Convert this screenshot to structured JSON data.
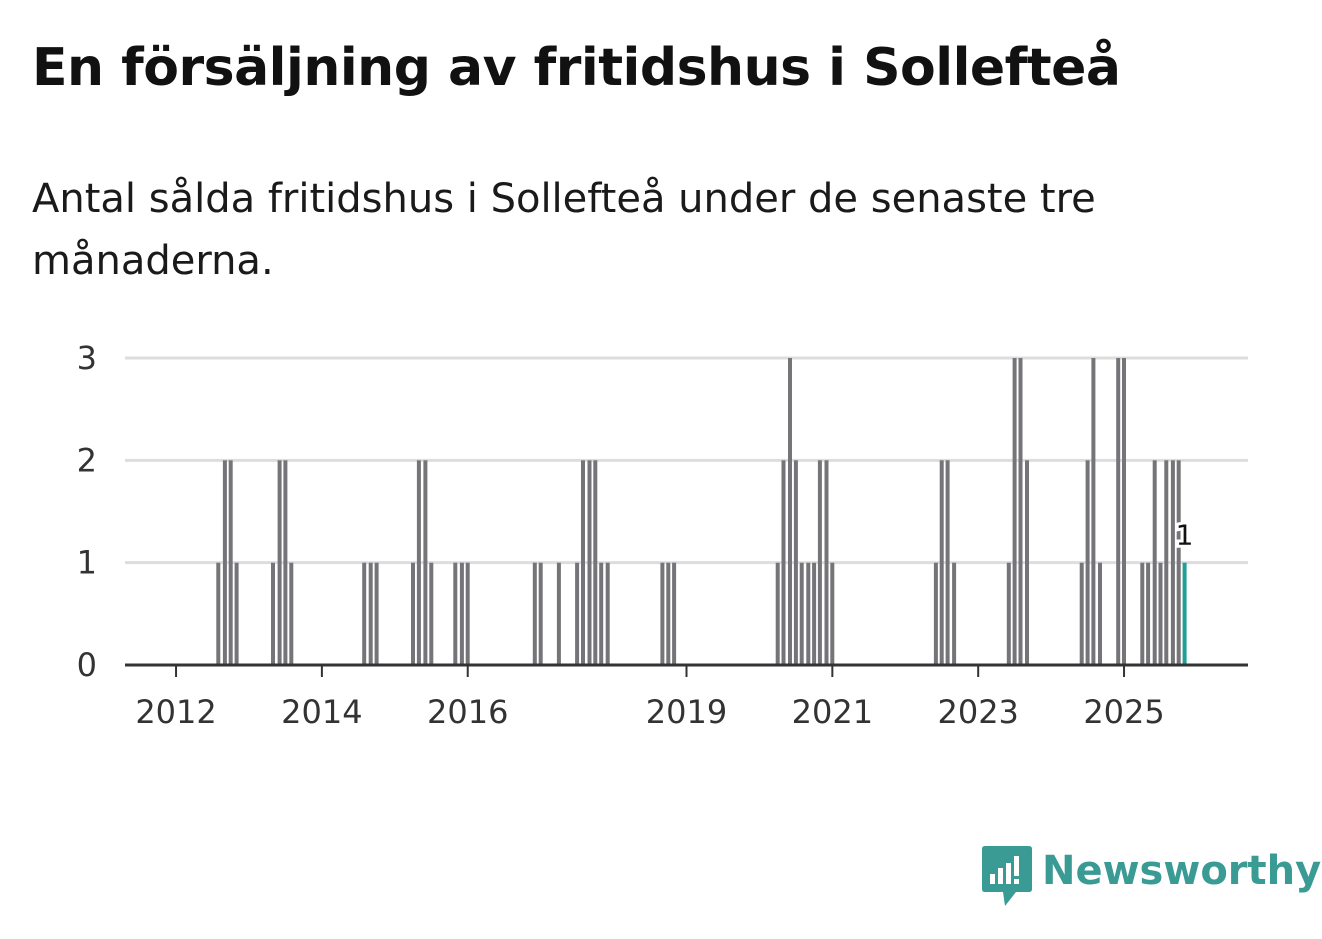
{
  "header": {
    "title": "En försäljning av fritidshus i Sollefteå",
    "subtitle": "Antal sålda fritidshus i Sollefteå under de senaste tre månaderna."
  },
  "brand": {
    "name": "Newsworthy",
    "logo_icon": "chart-bubble-icon"
  },
  "colors": {
    "bar": "#757579",
    "highlight": "#1f9f95",
    "grid": "#dddddd",
    "axis": "#333333",
    "brand": "#3a9b94"
  },
  "chart_data": {
    "type": "bar",
    "title": "En försäljning av fritidshus i Sollefteå",
    "subtitle": "Antal sålda fritidshus i Sollefteå under de senaste tre månaderna.",
    "xlabel": "",
    "ylabel": "",
    "ylim": [
      0,
      3
    ],
    "yticks": [
      0,
      1,
      2,
      3
    ],
    "xlim": [
      2011.3,
      2026.7
    ],
    "xticks": [
      "2012",
      "2014",
      "2016",
      "2019",
      "2021",
      "2023",
      "2025"
    ],
    "grid": true,
    "highlight_label": "1",
    "series": [
      {
        "name": "Antal sålda fritidshus",
        "points": [
          {
            "x": 2012.58,
            "y": 1
          },
          {
            "x": 2012.67,
            "y": 2
          },
          {
            "x": 2012.75,
            "y": 2
          },
          {
            "x": 2012.83,
            "y": 1
          },
          {
            "x": 2013.33,
            "y": 1
          },
          {
            "x": 2013.42,
            "y": 2
          },
          {
            "x": 2013.5,
            "y": 2
          },
          {
            "x": 2013.58,
            "y": 1
          },
          {
            "x": 2014.58,
            "y": 1
          },
          {
            "x": 2014.67,
            "y": 1
          },
          {
            "x": 2014.75,
            "y": 1
          },
          {
            "x": 2015.25,
            "y": 1
          },
          {
            "x": 2015.33,
            "y": 2
          },
          {
            "x": 2015.42,
            "y": 2
          },
          {
            "x": 2015.5,
            "y": 1
          },
          {
            "x": 2015.83,
            "y": 1
          },
          {
            "x": 2015.92,
            "y": 1
          },
          {
            "x": 2016.0,
            "y": 1
          },
          {
            "x": 2016.92,
            "y": 1
          },
          {
            "x": 2017.0,
            "y": 1
          },
          {
            "x": 2017.25,
            "y": 1
          },
          {
            "x": 2017.5,
            "y": 1
          },
          {
            "x": 2017.58,
            "y": 2
          },
          {
            "x": 2017.67,
            "y": 2
          },
          {
            "x": 2017.75,
            "y": 2
          },
          {
            "x": 2017.83,
            "y": 1
          },
          {
            "x": 2017.92,
            "y": 1
          },
          {
            "x": 2018.67,
            "y": 1
          },
          {
            "x": 2018.75,
            "y": 1
          },
          {
            "x": 2018.83,
            "y": 1
          },
          {
            "x": 2020.25,
            "y": 1
          },
          {
            "x": 2020.33,
            "y": 2
          },
          {
            "x": 2020.42,
            "y": 3
          },
          {
            "x": 2020.5,
            "y": 2
          },
          {
            "x": 2020.58,
            "y": 1
          },
          {
            "x": 2020.67,
            "y": 1
          },
          {
            "x": 2020.75,
            "y": 1
          },
          {
            "x": 2020.83,
            "y": 2
          },
          {
            "x": 2020.92,
            "y": 2
          },
          {
            "x": 2021.0,
            "y": 1
          },
          {
            "x": 2022.42,
            "y": 1
          },
          {
            "x": 2022.5,
            "y": 2
          },
          {
            "x": 2022.58,
            "y": 2
          },
          {
            "x": 2022.67,
            "y": 1
          },
          {
            "x": 2023.42,
            "y": 1
          },
          {
            "x": 2023.5,
            "y": 3
          },
          {
            "x": 2023.58,
            "y": 3
          },
          {
            "x": 2023.67,
            "y": 2
          },
          {
            "x": 2024.42,
            "y": 1
          },
          {
            "x": 2024.5,
            "y": 2
          },
          {
            "x": 2024.58,
            "y": 3
          },
          {
            "x": 2024.67,
            "y": 1
          },
          {
            "x": 2024.92,
            "y": 3
          },
          {
            "x": 2025.0,
            "y": 3
          },
          {
            "x": 2025.25,
            "y": 1
          },
          {
            "x": 2025.33,
            "y": 1
          },
          {
            "x": 2025.42,
            "y": 2
          },
          {
            "x": 2025.5,
            "y": 1
          },
          {
            "x": 2025.58,
            "y": 2
          },
          {
            "x": 2025.67,
            "y": 2
          },
          {
            "x": 2025.75,
            "y": 2
          },
          {
            "x": 2025.83,
            "y": 1,
            "highlight": true
          }
        ]
      }
    ]
  }
}
